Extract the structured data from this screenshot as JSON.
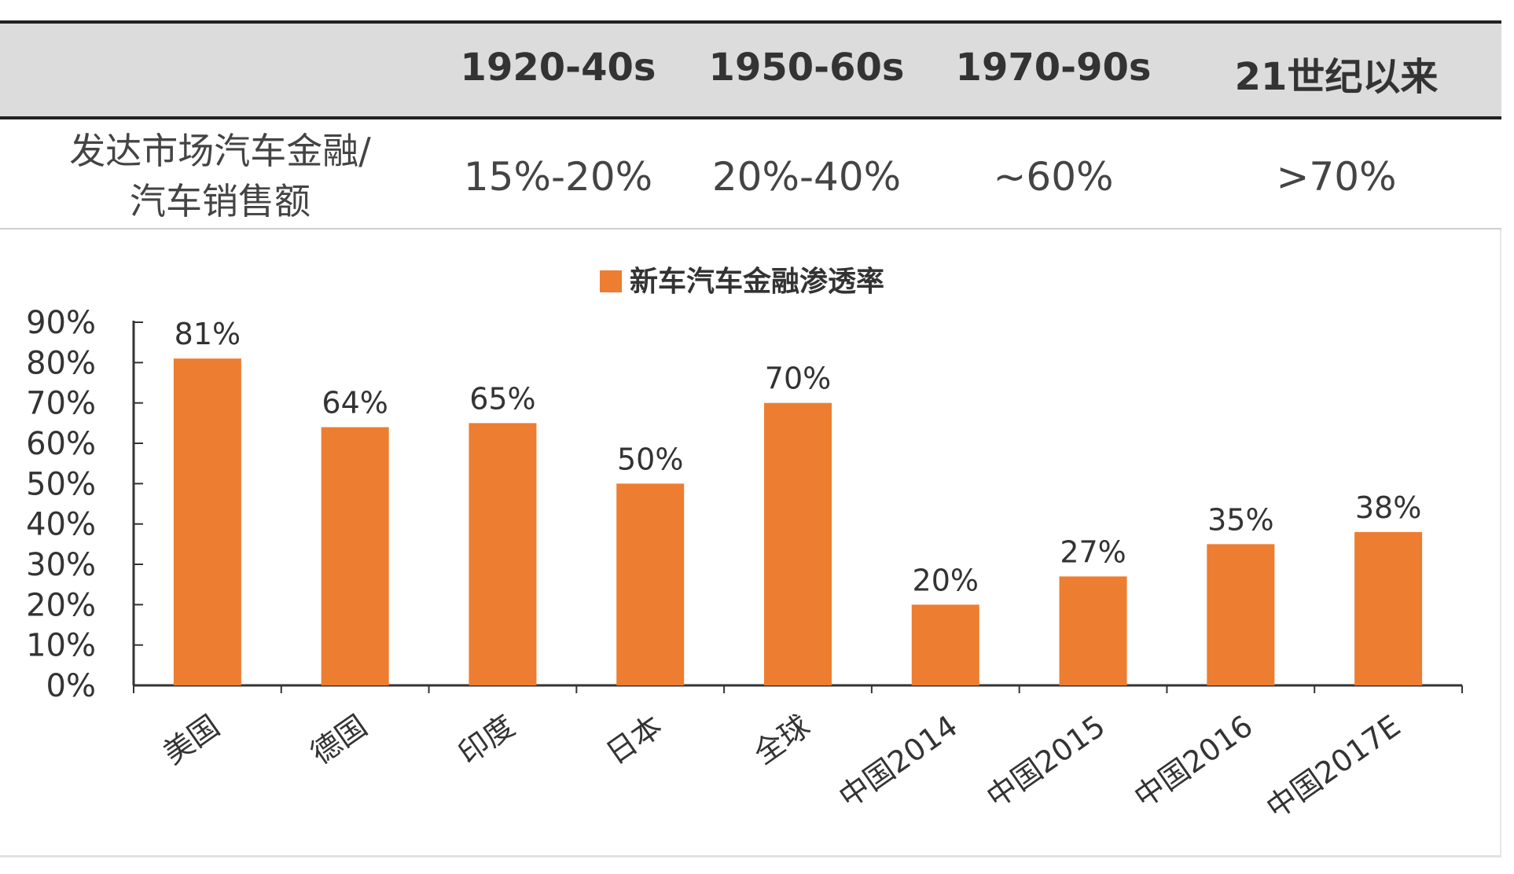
{
  "table": {
    "periods": [
      "1920-40s",
      "1950-60s",
      "1970-90s",
      "21世纪以来"
    ],
    "row_label_lines": [
      "发达市场汽车金融/",
      "汽车销售额"
    ],
    "values": [
      "15%-20%",
      "20%-40%",
      "~60%",
      ">70%"
    ]
  },
  "colors": {
    "bar": "#ed7d31",
    "axis": "#333333",
    "header_band": "#dcdcdc"
  },
  "chart_data": {
    "type": "bar",
    "categories": [
      "美国",
      "德国",
      "印度",
      "日本",
      "全球",
      "中国2014",
      "中国2015",
      "中国2016",
      "中国2017E"
    ],
    "series": [
      {
        "name": "新车汽车金融渗透率",
        "values": [
          81,
          64,
          65,
          50,
          70,
          20,
          27,
          35,
          38
        ]
      }
    ],
    "data_labels": [
      "81%",
      "64%",
      "65%",
      "50%",
      "70%",
      "20%",
      "27%",
      "35%",
      "38%"
    ],
    "yticks": [
      "0%",
      "10%",
      "20%",
      "30%",
      "40%",
      "50%",
      "60%",
      "70%",
      "80%",
      "90%"
    ],
    "ylim": [
      0,
      90
    ],
    "legend_position": "top-center",
    "xlabel": "",
    "ylabel": ""
  }
}
